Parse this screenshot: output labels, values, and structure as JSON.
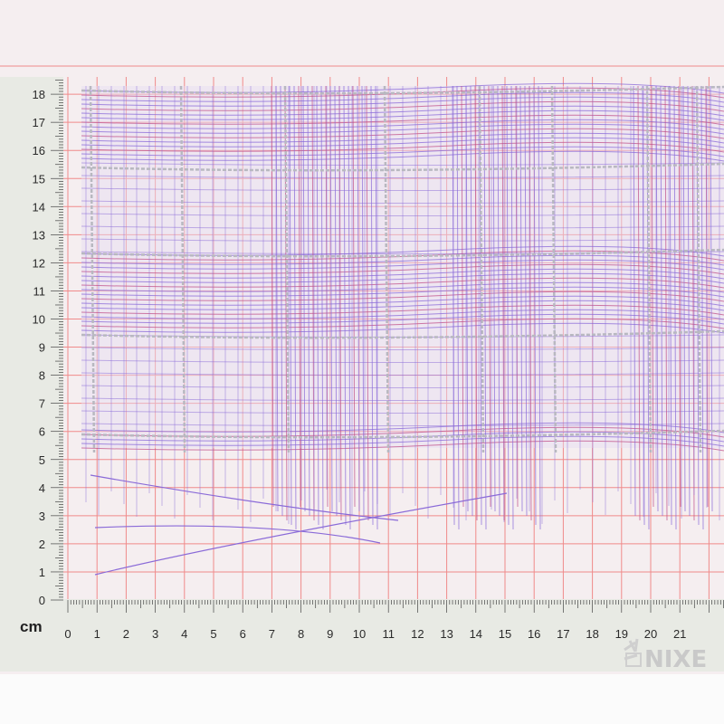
{
  "ruler": {
    "unit_label": "cm",
    "vertical_labels": [
      "0",
      "1",
      "2",
      "3",
      "4",
      "5",
      "6",
      "7",
      "8",
      "9",
      "10",
      "11",
      "12",
      "13",
      "14",
      "15",
      "16",
      "17",
      "18"
    ],
    "horizontal_labels": [
      "0",
      "1",
      "2",
      "3",
      "4",
      "5",
      "6",
      "7",
      "8",
      "9",
      "10",
      "11",
      "12",
      "13",
      "14",
      "15",
      "16",
      "17",
      "18",
      "19",
      "20",
      "21"
    ]
  },
  "watermark": {
    "text": "NIXE"
  },
  "colors": {
    "grid": "#f08a8a",
    "ruler_strip": "#e9ebe6",
    "fabric_purple": "#8a6ad8",
    "fabric_red": "#c0508a",
    "silver_thread": "#b8b8c0"
  }
}
